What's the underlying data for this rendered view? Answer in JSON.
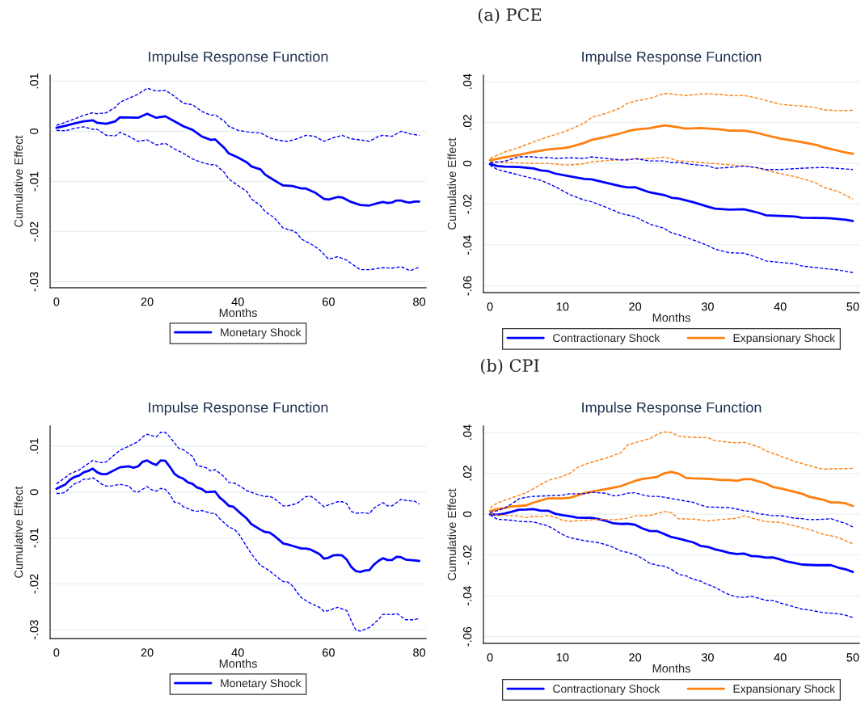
{
  "chart_data": [
    {
      "type": "line",
      "title": "Impulse Response Function",
      "xlabel": "Months",
      "ylabel": "Cumulative Effect",
      "grid": "y",
      "legend": "bottom",
      "xlim": [
        -1.4,
        81.5
      ],
      "ylim": [
        -0.0312,
        0.0112
      ],
      "xticks": [
        0,
        20,
        40,
        60,
        80
      ],
      "yticks": [
        {
          "value": -0.03,
          "label": "-.03"
        },
        {
          "value": -0.02,
          "label": "-.02"
        },
        {
          "value": -0.01,
          "label": "-.01"
        },
        0,
        {
          "value": 0.01,
          "label": ".01"
        }
      ],
      "series": [
        {
          "name": "Monetary Shock",
          "color": "#0000ff",
          "line_style": "solid",
          "x": [
            0,
            2,
            4,
            6,
            8,
            9,
            11,
            13,
            14,
            18,
            20,
            22,
            24,
            26,
            28,
            30,
            32,
            34,
            35,
            37,
            38,
            40,
            42,
            43,
            45,
            46,
            47,
            49,
            50,
            52,
            54,
            55,
            57,
            59,
            60,
            62,
            63,
            65,
            67,
            69,
            71,
            72,
            73,
            74,
            75,
            76,
            77,
            78,
            79,
            80
          ],
          "values": [
            0.0007,
            0.0011,
            0.0016,
            0.002,
            0.0022,
            0.0017,
            0.0015,
            0.002,
            0.0028,
            0.0027,
            0.0035,
            0.0027,
            0.003,
            0.002,
            0.001,
            0.0003,
            -0.001,
            -0.0017,
            -0.0016,
            -0.0033,
            -0.0044,
            -0.0052,
            -0.0062,
            -0.007,
            -0.0076,
            -0.0086,
            -0.0092,
            -0.0103,
            -0.0108,
            -0.0109,
            -0.0114,
            -0.0114,
            -0.0122,
            -0.0135,
            -0.0136,
            -0.0131,
            -0.0132,
            -0.0141,
            -0.0147,
            -0.0148,
            -0.0143,
            -0.0141,
            -0.0143,
            -0.0142,
            -0.0138,
            -0.0138,
            -0.0141,
            -0.0142,
            -0.014,
            -0.014
          ]
        },
        {
          "color": "#0000ff",
          "line_style": "dashed",
          "x": [
            0,
            2,
            4,
            6,
            8,
            9,
            11,
            13,
            14,
            16,
            18,
            20,
            22,
            24,
            26,
            28,
            30,
            32,
            34,
            35,
            37,
            38,
            40,
            42,
            44,
            45,
            47,
            49,
            51,
            53,
            55,
            57,
            59,
            61,
            63,
            65,
            67,
            69,
            71,
            72,
            74,
            76,
            78,
            80
          ],
          "values": [
            0.0012,
            0.0018,
            0.0025,
            0.0032,
            0.0037,
            0.0035,
            0.0037,
            0.0048,
            0.0058,
            0.0066,
            0.0074,
            0.0086,
            0.008,
            0.0082,
            0.007,
            0.0056,
            0.0053,
            0.004,
            0.0032,
            0.0033,
            0.002,
            0.001,
            0.0002,
            -0.0001,
            -0.0003,
            -0.0003,
            -0.0013,
            -0.0018,
            -0.002,
            -0.0015,
            -0.0008,
            -0.001,
            -0.002,
            -0.0013,
            -0.0008,
            -0.0015,
            -0.0017,
            -0.002,
            -0.001,
            -0.0008,
            -0.001,
            0.0,
            -0.0005,
            -0.0008
          ]
        },
        {
          "color": "#0000ff",
          "line_style": "dashed",
          "x": [
            0,
            2,
            4,
            6,
            8,
            9,
            11,
            13,
            14,
            16,
            18,
            20,
            22,
            24,
            26,
            28,
            30,
            32,
            34,
            35,
            37,
            38,
            40,
            42,
            43,
            45,
            46,
            48,
            50,
            52,
            53,
            54,
            56,
            58,
            60,
            62,
            64,
            66,
            67,
            69,
            72,
            74,
            76,
            78,
            80
          ],
          "values": [
            0.0002,
            0.0001,
            0.0006,
            0.0009,
            0.0004,
            0.0004,
            -0.0008,
            -0.0009,
            -0.0002,
            -0.001,
            -0.002,
            -0.0017,
            -0.0027,
            -0.0024,
            -0.0035,
            -0.0044,
            -0.0055,
            -0.0062,
            -0.0067,
            -0.0066,
            -0.0082,
            -0.0095,
            -0.0108,
            -0.012,
            -0.0135,
            -0.0148,
            -0.016,
            -0.0172,
            -0.0193,
            -0.0198,
            -0.0203,
            -0.0215,
            -0.0224,
            -0.0236,
            -0.0255,
            -0.025,
            -0.0257,
            -0.027,
            -0.0276,
            -0.0276,
            -0.0272,
            -0.0273,
            -0.027,
            -0.0278,
            -0.0271
          ]
        }
      ]
    },
    {
      "type": "line",
      "subtitle": "(a) PCE",
      "title": "Impulse Response Function",
      "xlabel": "Months",
      "ylabel": "Cumulative Effect",
      "grid": "y",
      "legend": "bottom",
      "xlim": [
        -0.9,
        50.9
      ],
      "ylim": [
        -0.0633,
        0.0432
      ],
      "xticks": [
        0,
        10,
        20,
        30,
        40,
        50
      ],
      "yticks": [
        {
          "value": -0.06,
          "label": "-.06"
        },
        {
          "value": -0.04,
          "label": "-.04"
        },
        {
          "value": -0.02,
          "label": "-.02"
        },
        0,
        {
          "value": 0.02,
          "label": ".02"
        },
        {
          "value": 0.04,
          "label": ".04"
        }
      ],
      "series": [
        {
          "name": "Contractionary Shock",
          "color": "#0000ff",
          "line_style": "solid",
          "x": [
            0,
            1,
            2,
            4,
            6,
            7,
            8,
            9,
            11,
            13,
            14,
            16,
            18,
            19,
            20,
            22,
            24,
            25,
            26,
            28,
            30,
            31,
            33,
            35,
            37,
            38,
            40,
            42,
            43,
            45,
            47,
            49,
            50
          ],
          "values": [
            -0.0003,
            -0.0013,
            -0.0016,
            -0.0018,
            -0.0025,
            -0.0035,
            -0.0038,
            -0.005,
            -0.0063,
            -0.0076,
            -0.0078,
            -0.0095,
            -0.0112,
            -0.0118,
            -0.0117,
            -0.0142,
            -0.0155,
            -0.0168,
            -0.0172,
            -0.019,
            -0.0212,
            -0.0222,
            -0.0227,
            -0.0225,
            -0.0242,
            -0.0254,
            -0.0257,
            -0.026,
            -0.0266,
            -0.0267,
            -0.0269,
            -0.0276,
            -0.0282
          ]
        },
        {
          "name": "Expansionary Shock",
          "color": "#ff7f0e",
          "line_style": "solid",
          "x": [
            0,
            2,
            4,
            6,
            8,
            10,
            11,
            13,
            14,
            16,
            18,
            19,
            20,
            22,
            24,
            25,
            27,
            29,
            31,
            32,
            33,
            35,
            37,
            38,
            40,
            42,
            44,
            45,
            46,
            47,
            49,
            50
          ],
          "values": [
            0.0015,
            0.003,
            0.0042,
            0.0056,
            0.0068,
            0.0074,
            0.008,
            0.01,
            0.0115,
            0.013,
            0.0147,
            0.0158,
            0.0165,
            0.0172,
            0.0186,
            0.0182,
            0.017,
            0.0173,
            0.0168,
            0.0165,
            0.016,
            0.016,
            0.0148,
            0.0138,
            0.0122,
            0.011,
            0.0097,
            0.009,
            0.0078,
            0.007,
            0.0053,
            0.0047
          ]
        },
        {
          "color": "#ff7f0e",
          "line_style": "dashed",
          "x": [
            0,
            2,
            4,
            6,
            8,
            10,
            11,
            13,
            14,
            16,
            18,
            19,
            20,
            22,
            24,
            25,
            27,
            29,
            30,
            32,
            33,
            35,
            37,
            38,
            40,
            42,
            44,
            45,
            46,
            48,
            50
          ],
          "values": [
            0.0025,
            0.0055,
            0.0078,
            0.0105,
            0.013,
            0.0152,
            0.0166,
            0.0197,
            0.0225,
            0.0245,
            0.0272,
            0.0295,
            0.0305,
            0.0318,
            0.0342,
            0.034,
            0.0332,
            0.034,
            0.0341,
            0.0337,
            0.0332,
            0.0333,
            0.0318,
            0.0308,
            0.029,
            0.0283,
            0.0278,
            0.0272,
            0.0262,
            0.0258,
            0.026
          ]
        },
        {
          "color": "#ff7f0e",
          "line_style": "dashed",
          "x": [
            0,
            2,
            4,
            6,
            8,
            10,
            11,
            13,
            14,
            16,
            18,
            20,
            22,
            24,
            25,
            26,
            28,
            30,
            32,
            34,
            35,
            36,
            38,
            40,
            42,
            44,
            45,
            46,
            48,
            50
          ],
          "values": [
            0.0008,
            0.0005,
            0.0002,
            0.0,
            0.0,
            -0.0007,
            -0.0008,
            -0.0002,
            0.0008,
            0.0013,
            0.0018,
            0.0022,
            0.0023,
            0.003,
            0.0022,
            0.0012,
            0.0008,
            0.0001,
            -0.0004,
            -0.001,
            -0.0012,
            -0.0016,
            -0.0033,
            -0.005,
            -0.0065,
            -0.0085,
            -0.0098,
            -0.0118,
            -0.0138,
            -0.0175
          ]
        },
        {
          "color": "#0000ff",
          "line_style": "dashed",
          "x": [
            0,
            2,
            4,
            6,
            7,
            8,
            9,
            11,
            13,
            14,
            16,
            18,
            19,
            20,
            22,
            24,
            25,
            26,
            28,
            30,
            31,
            33,
            35,
            37,
            38,
            40,
            42,
            44,
            46,
            48,
            50
          ],
          "values": [
            0.0003,
            0.001,
            0.0032,
            0.0032,
            0.0027,
            0.0029,
            0.0024,
            0.0027,
            0.0024,
            0.0032,
            0.0024,
            0.0017,
            0.0017,
            0.0023,
            0.0012,
            0.0012,
            0.0004,
            0.0005,
            -0.0006,
            -0.0012,
            -0.0024,
            -0.002,
            -0.0013,
            -0.0022,
            -0.003,
            -0.003,
            -0.0026,
            -0.0022,
            -0.002,
            -0.0025,
            -0.003
          ]
        },
        {
          "color": "#0000ff",
          "line_style": "dashed",
          "x": [
            0,
            1,
            3,
            5,
            7,
            8,
            9,
            11,
            13,
            14,
            16,
            18,
            19,
            20,
            22,
            24,
            25,
            26,
            28,
            30,
            31,
            33,
            35,
            37,
            38,
            40,
            42,
            43,
            46,
            48,
            50
          ],
          "values": [
            -0.0008,
            -0.003,
            -0.0048,
            -0.0066,
            -0.0083,
            -0.0098,
            -0.0115,
            -0.0153,
            -0.018,
            -0.0188,
            -0.0215,
            -0.0245,
            -0.0253,
            -0.0262,
            -0.0297,
            -0.0318,
            -0.034,
            -0.035,
            -0.0375,
            -0.0402,
            -0.042,
            -0.0438,
            -0.044,
            -0.0463,
            -0.0478,
            -0.0485,
            -0.0492,
            -0.0503,
            -0.0515,
            -0.0522,
            -0.0535
          ]
        }
      ]
    },
    {
      "type": "line",
      "title": "Impulse Response Function",
      "xlabel": "Months",
      "ylabel": "Cumulative Effect",
      "grid": "y",
      "legend": "bottom",
      "xlim": [
        -1.4,
        81.5
      ],
      "ylim": [
        -0.0319,
        0.0144
      ],
      "xticks": [
        0,
        20,
        40,
        60,
        80
      ],
      "yticks": [
        {
          "value": -0.03,
          "label": "-.03"
        },
        {
          "value": -0.02,
          "label": "-.02"
        },
        {
          "value": -0.01,
          "label": "-.01"
        },
        0,
        {
          "value": 0.01,
          "label": ".01"
        }
      ],
      "series": [
        {
          "name": "Monetary Shock",
          "color": "#0000ff",
          "line_style": "solid",
          "x": [
            0,
            2,
            3,
            4,
            5,
            6,
            7,
            8,
            9,
            10,
            11,
            14,
            16,
            17,
            18,
            19,
            20,
            21,
            22,
            23,
            24,
            25,
            26,
            27,
            28,
            29,
            30,
            31,
            32,
            33,
            35,
            36,
            37,
            38,
            39,
            40,
            42,
            43,
            45,
            46,
            47,
            48,
            50,
            51,
            52,
            54,
            55,
            56,
            58,
            59,
            60,
            61,
            62,
            63,
            64,
            65,
            66,
            67,
            68,
            69,
            70,
            71,
            72,
            73,
            74,
            75,
            76,
            77,
            78,
            80
          ],
          "values": [
            0.0007,
            0.0017,
            0.0027,
            0.0033,
            0.0036,
            0.0043,
            0.0046,
            0.0051,
            0.0043,
            0.0039,
            0.0039,
            0.0054,
            0.0056,
            0.0053,
            0.0056,
            0.0066,
            0.0069,
            0.0063,
            0.0059,
            0.0069,
            0.0068,
            0.0055,
            0.004,
            0.0033,
            0.0029,
            0.0021,
            0.0018,
            0.001,
            0.0007,
            0.0,
            0.0001,
            -0.0012,
            -0.002,
            -0.003,
            -0.0032,
            -0.0041,
            -0.0058,
            -0.007,
            -0.0082,
            -0.0087,
            -0.0088,
            -0.0095,
            -0.0112,
            -0.0114,
            -0.0117,
            -0.0123,
            -0.0123,
            -0.0125,
            -0.0135,
            -0.0145,
            -0.0143,
            -0.0138,
            -0.0137,
            -0.0138,
            -0.0147,
            -0.0163,
            -0.0172,
            -0.0174,
            -0.0171,
            -0.017,
            -0.0158,
            -0.015,
            -0.0144,
            -0.0148,
            -0.0148,
            -0.0141,
            -0.0142,
            -0.0147,
            -0.0148,
            -0.015
          ]
        },
        {
          "color": "#0000ff",
          "line_style": "dashed",
          "x": [
            0,
            2,
            3,
            4,
            5,
            6,
            8,
            9,
            10,
            11,
            13,
            14,
            16,
            18,
            19,
            20,
            22,
            23,
            24,
            25,
            27,
            28,
            30,
            31,
            33,
            34,
            35,
            37,
            38,
            39,
            40,
            42,
            44,
            46,
            47,
            48,
            50,
            51,
            53,
            55,
            56,
            57,
            59,
            60,
            62,
            63,
            64,
            65,
            66,
            68,
            69,
            70,
            72,
            73,
            74,
            76,
            77,
            78,
            79,
            80
          ],
          "values": [
            0.0018,
            0.0032,
            0.004,
            0.0044,
            0.0048,
            0.0055,
            0.0069,
            0.0066,
            0.0064,
            0.0066,
            0.0083,
            0.0091,
            0.01,
            0.011,
            0.012,
            0.0126,
            0.012,
            0.013,
            0.013,
            0.012,
            0.0095,
            0.0092,
            0.0078,
            0.0058,
            0.0053,
            0.0046,
            0.0049,
            0.0033,
            0.0021,
            0.002,
            0.0016,
            0.0003,
            -0.0004,
            -0.001,
            -0.0009,
            -0.0014,
            -0.003,
            -0.003,
            -0.0025,
            -0.001,
            -0.0009,
            -0.0015,
            -0.0032,
            -0.0028,
            -0.0021,
            -0.0021,
            -0.0025,
            -0.0042,
            -0.0046,
            -0.0045,
            -0.0047,
            -0.0035,
            -0.0023,
            -0.003,
            -0.003,
            -0.0016,
            -0.0018,
            -0.0019,
            -0.002,
            -0.0026
          ]
        },
        {
          "color": "#0000ff",
          "line_style": "dashed",
          "x": [
            0,
            1,
            2,
            3,
            4,
            5,
            6,
            7,
            8,
            9,
            10,
            11,
            12,
            14,
            16,
            17,
            18,
            20,
            21,
            22,
            23,
            24,
            25,
            26,
            27,
            28,
            30,
            31,
            32,
            34,
            35,
            36,
            38,
            39,
            40,
            41,
            43,
            45,
            46,
            47,
            48,
            50,
            51,
            52,
            54,
            56,
            58,
            59,
            60,
            62,
            64,
            65,
            66,
            67,
            69,
            71,
            72,
            74,
            75,
            77,
            79,
            80
          ],
          "values": [
            -0.0003,
            -0.0003,
            0.0,
            0.001,
            0.0018,
            0.0022,
            0.0028,
            0.0028,
            0.0031,
            0.0025,
            0.0017,
            0.0013,
            0.0013,
            0.0017,
            0.0013,
            0.0002,
            0.0,
            0.0012,
            0.0005,
            0.0002,
            0.0008,
            0.0006,
            -0.0005,
            -0.0022,
            -0.0024,
            -0.0032,
            -0.004,
            -0.0042,
            -0.004,
            -0.0046,
            -0.0047,
            -0.0058,
            -0.0076,
            -0.008,
            -0.0088,
            -0.0104,
            -0.0135,
            -0.016,
            -0.0165,
            -0.0172,
            -0.018,
            -0.0195,
            -0.0196,
            -0.0204,
            -0.023,
            -0.0242,
            -0.0251,
            -0.026,
            -0.0258,
            -0.0251,
            -0.0258,
            -0.028,
            -0.03,
            -0.0303,
            -0.0295,
            -0.0278,
            -0.0266,
            -0.0267,
            -0.0264,
            -0.0278,
            -0.0278,
            -0.0275
          ]
        }
      ]
    },
    {
      "type": "line",
      "subtitle": "(b) CPI",
      "title": "Impulse Response Function",
      "xlabel": "Months",
      "ylabel": "Cumulative Effect",
      "grid": "y",
      "legend": "bottom",
      "xlim": [
        -0.9,
        50.9
      ],
      "ylim": [
        -0.0633,
        0.0432
      ],
      "xticks": [
        0,
        10,
        20,
        30,
        40,
        50
      ],
      "yticks": [
        {
          "value": -0.06,
          "label": "-.06"
        },
        {
          "value": -0.04,
          "label": "-.04"
        },
        {
          "value": -0.02,
          "label": "-.02"
        },
        0,
        {
          "value": 0.02,
          "label": ".02"
        },
        {
          "value": 0.04,
          "label": ".04"
        }
      ],
      "series": [
        {
          "name": "Contractionary Shock",
          "color": "#0000ff",
          "line_style": "solid",
          "x": [
            0,
            1,
            2,
            3,
            4,
            5,
            6,
            7,
            8,
            9,
            10,
            11,
            12,
            13,
            14,
            15,
            16,
            17,
            18,
            19,
            20,
            21,
            22,
            23,
            24,
            25,
            26,
            28,
            29,
            30,
            31,
            32,
            33,
            34,
            35,
            36,
            37,
            38,
            39,
            40,
            41,
            42,
            43,
            45,
            47,
            48,
            49,
            50
          ],
          "values": [
            0.0,
            -0.0003,
            0.0003,
            0.0012,
            0.0022,
            0.0023,
            0.0025,
            0.0017,
            0.0017,
            0.0002,
            -0.0005,
            -0.001,
            -0.0017,
            -0.0018,
            -0.0018,
            -0.0025,
            -0.0033,
            -0.0045,
            -0.0048,
            -0.0047,
            -0.0052,
            -0.007,
            -0.0082,
            -0.0083,
            -0.0097,
            -0.0112,
            -0.012,
            -0.0138,
            -0.0155,
            -0.016,
            -0.0172,
            -0.018,
            -0.019,
            -0.0195,
            -0.0193,
            -0.0205,
            -0.0207,
            -0.0213,
            -0.0212,
            -0.0222,
            -0.0233,
            -0.024,
            -0.0247,
            -0.025,
            -0.025,
            -0.0262,
            -0.027,
            -0.0283
          ]
        },
        {
          "name": "Expansionary Shock",
          "color": "#ff7f0e",
          "line_style": "solid",
          "x": [
            0,
            1,
            2,
            3,
            5,
            6,
            8,
            10,
            11,
            13,
            14,
            16,
            18,
            19,
            20,
            21,
            22,
            23,
            24,
            25,
            26,
            27,
            28,
            30,
            32,
            33,
            34,
            35,
            36,
            38,
            39,
            40,
            41,
            43,
            44,
            46,
            47,
            48,
            49,
            50
          ],
          "values": [
            0.0015,
            0.0025,
            0.003,
            0.0038,
            0.0043,
            0.0057,
            0.0077,
            0.0077,
            0.008,
            0.0103,
            0.011,
            0.0123,
            0.0137,
            0.015,
            0.0163,
            0.0172,
            0.0177,
            0.0182,
            0.02,
            0.0207,
            0.0198,
            0.0178,
            0.0175,
            0.0173,
            0.0167,
            0.0167,
            0.0163,
            0.0171,
            0.0171,
            0.015,
            0.0133,
            0.0127,
            0.0118,
            0.01,
            0.0085,
            0.007,
            0.0057,
            0.0057,
            0.0053,
            0.004
          ]
        },
        {
          "color": "#ff7f0e",
          "line_style": "dashed",
          "x": [
            0,
            1,
            3,
            5,
            6,
            8,
            10,
            11,
            12,
            14,
            16,
            18,
            19,
            20,
            22,
            23,
            24,
            25,
            26,
            27,
            29,
            30,
            31,
            33,
            34,
            35,
            37,
            38,
            40,
            42,
            44,
            45,
            46,
            47,
            48,
            50
          ],
          "values": [
            0.003,
            0.0055,
            0.008,
            0.0105,
            0.0125,
            0.0165,
            0.0185,
            0.02,
            0.0228,
            0.0255,
            0.0275,
            0.03,
            0.034,
            0.035,
            0.037,
            0.039,
            0.0403,
            0.04,
            0.0382,
            0.0378,
            0.0375,
            0.0375,
            0.036,
            0.0352,
            0.0349,
            0.0352,
            0.033,
            0.031,
            0.0285,
            0.0258,
            0.0238,
            0.0228,
            0.022,
            0.0222,
            0.0223,
            0.0224
          ]
        },
        {
          "color": "#ff7f0e",
          "line_style": "dashed",
          "x": [
            0,
            1,
            2,
            4,
            5,
            6,
            7,
            8,
            9,
            10,
            11,
            13,
            15,
            17,
            19,
            20,
            22,
            23,
            24,
            25,
            26,
            28,
            30,
            32,
            34,
            35,
            36,
            38,
            40,
            42,
            44,
            46,
            47,
            48,
            50
          ],
          "values": [
            0.0003,
            -0.0005,
            -0.0005,
            -0.001,
            -0.0017,
            -0.001,
            -0.0012,
            -0.0006,
            -0.0015,
            -0.003,
            -0.0035,
            -0.003,
            -0.0025,
            -0.0028,
            -0.002,
            -0.0008,
            -0.0007,
            0.0003,
            0.0013,
            0.0008,
            -0.0023,
            -0.0024,
            -0.0033,
            -0.0026,
            -0.002,
            -0.0008,
            -0.0018,
            -0.0037,
            -0.004,
            -0.0058,
            -0.0075,
            -0.01,
            -0.0106,
            -0.0115,
            -0.0145
          ]
        },
        {
          "color": "#0000ff",
          "line_style": "dashed",
          "x": [
            0,
            1,
            2,
            3,
            4,
            5,
            6,
            8,
            10,
            11,
            13,
            14,
            16,
            17,
            18,
            19,
            20,
            21,
            22,
            23,
            24,
            26,
            28,
            29,
            30,
            32,
            33,
            34,
            35,
            36,
            37,
            38,
            39,
            40,
            42,
            43,
            44,
            46,
            47,
            48,
            49,
            50
          ],
          "values": [
            0.0007,
            0.0017,
            0.003,
            0.005,
            0.0075,
            0.0083,
            0.0087,
            0.009,
            0.0093,
            0.01,
            0.01,
            0.0107,
            0.0102,
            0.009,
            0.0093,
            0.0103,
            0.0105,
            0.0095,
            0.0087,
            0.0087,
            0.0083,
            0.007,
            0.0058,
            0.0045,
            0.0035,
            0.0033,
            0.0032,
            0.0025,
            0.0017,
            0.0013,
            0.0002,
            -0.0002,
            -0.0008,
            -0.0007,
            -0.002,
            -0.0022,
            -0.0027,
            -0.0025,
            -0.0022,
            -0.0035,
            -0.0045,
            -0.0062
          ]
        },
        {
          "color": "#0000ff",
          "line_style": "dashed",
          "x": [
            0,
            1,
            3,
            4,
            5,
            6,
            8,
            9,
            10,
            11,
            13,
            15,
            16,
            17,
            18,
            19,
            20,
            21,
            22,
            23,
            24,
            25,
            26,
            27,
            28,
            29,
            30,
            31,
            32,
            33,
            34,
            35,
            36,
            37,
            38,
            39,
            40,
            42,
            43,
            44,
            46,
            47,
            48,
            49,
            50
          ],
          "values": [
            -0.0003,
            -0.0025,
            -0.003,
            -0.0035,
            -0.0037,
            -0.0038,
            -0.0058,
            -0.0078,
            -0.01,
            -0.0115,
            -0.013,
            -0.014,
            -0.015,
            -0.0162,
            -0.018,
            -0.0188,
            -0.0198,
            -0.0217,
            -0.024,
            -0.025,
            -0.0255,
            -0.027,
            -0.0295,
            -0.0302,
            -0.0318,
            -0.0328,
            -0.0345,
            -0.0358,
            -0.0378,
            -0.0395,
            -0.0405,
            -0.0408,
            -0.0402,
            -0.0412,
            -0.0422,
            -0.0423,
            -0.0435,
            -0.0455,
            -0.0465,
            -0.047,
            -0.0483,
            -0.0485,
            -0.0488,
            -0.0495,
            -0.0506
          ]
        }
      ]
    }
  ]
}
